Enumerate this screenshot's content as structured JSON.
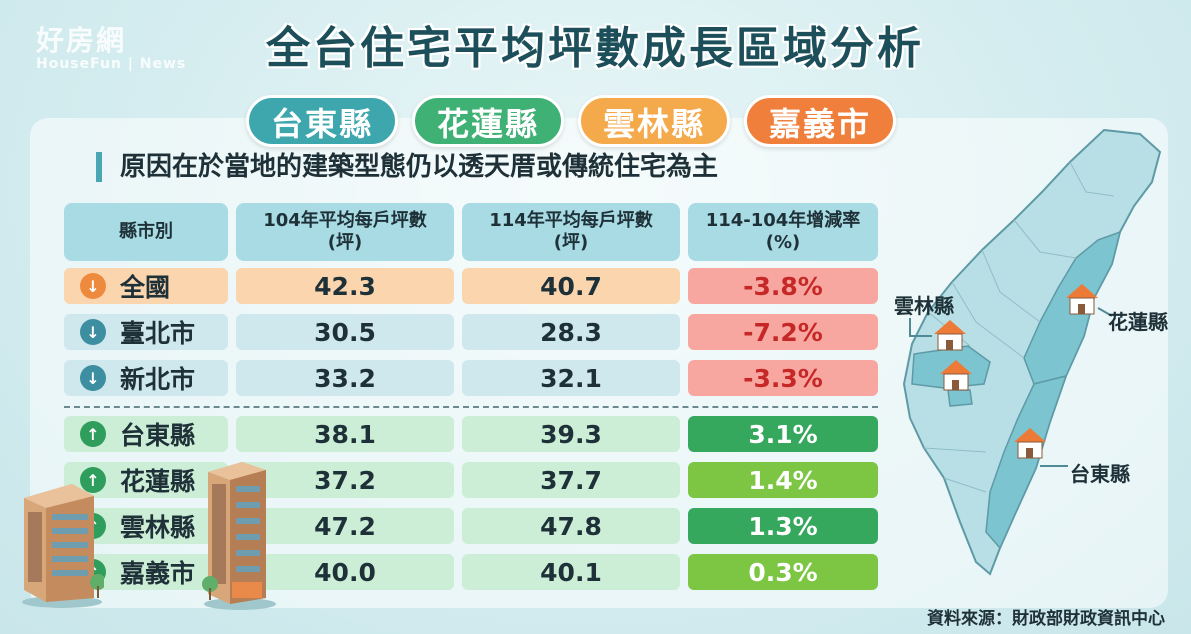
{
  "watermark": {
    "name": "好房網",
    "sub": "HouseFun | News"
  },
  "title": "全台住宅平均坪數成長區域分析",
  "highlights": [
    {
      "label": "台東縣",
      "color": "#3ea7ad"
    },
    {
      "label": "花蓮縣",
      "color": "#3fb174"
    },
    {
      "label": "雲林縣",
      "color": "#f4a94a"
    },
    {
      "label": "嘉義市",
      "color": "#ef7f3b"
    }
  ],
  "reason": "原因在於當地的建築型態仍以透天厝或傳統住宅為主",
  "table": {
    "headers": [
      {
        "line1": "縣市別",
        "line2": ""
      },
      {
        "line1": "104年平均每戶坪數",
        "line2": "(坪)"
      },
      {
        "line1": "114年平均每戶坪數",
        "line2": "(坪)"
      },
      {
        "line1": "114-104年增減率",
        "line2": "(%)"
      }
    ],
    "rows": [
      {
        "name": "全國",
        "y104": "42.3",
        "y114": "40.7",
        "change": "-3.8%",
        "direction": "down",
        "rowColor": "#fbd5ae",
        "arrowColor": "#ee8a3e",
        "changeColor": "#f7a7a0",
        "changeText": "#c62828"
      },
      {
        "name": "臺北市",
        "y104": "30.5",
        "y114": "28.3",
        "change": "-7.2%",
        "direction": "down",
        "rowColor": "#cfe8ee",
        "arrowColor": "#3d8ea0",
        "changeColor": "#f7a7a0",
        "changeText": "#c62828"
      },
      {
        "name": "新北市",
        "y104": "33.2",
        "y114": "32.1",
        "change": "-3.3%",
        "direction": "down",
        "rowColor": "#cfe8ee",
        "arrowColor": "#3d8ea0",
        "changeColor": "#f7a7a0",
        "changeText": "#c62828"
      },
      {
        "name": "台東縣",
        "y104": "38.1",
        "y114": "39.3",
        "change": "3.1%",
        "direction": "up",
        "rowColor": "#cdeed6",
        "arrowColor": "#2f9e5c",
        "changeColor": "#35a85e",
        "changeText": "#ffffff"
      },
      {
        "name": "花蓮縣",
        "y104": "37.2",
        "y114": "37.7",
        "change": "1.4%",
        "direction": "up",
        "rowColor": "#cdeed6",
        "arrowColor": "#2f9e5c",
        "changeColor": "#7cc644",
        "changeText": "#ffffff"
      },
      {
        "name": "雲林縣",
        "y104": "47.2",
        "y114": "47.8",
        "change": "1.3%",
        "direction": "up",
        "rowColor": "#cdeed6",
        "arrowColor": "#2f9e5c",
        "changeColor": "#35a85e",
        "changeText": "#ffffff"
      },
      {
        "name": "嘉義市",
        "y104": "40.0",
        "y114": "40.1",
        "change": "0.3%",
        "direction": "up",
        "rowColor": "#cdeed6",
        "arrowColor": "#2f9e5c",
        "changeColor": "#7cc644",
        "changeText": "#ffffff"
      }
    ]
  },
  "chart_data": {
    "type": "table",
    "title": "全台住宅平均坪數成長區域分析",
    "columns": [
      "縣市別",
      "104年平均每戶坪數(坪)",
      "114年平均每戶坪數(坪)",
      "114-104年增減率(%)"
    ],
    "categories": [
      "全國",
      "臺北市",
      "新北市",
      "台東縣",
      "花蓮縣",
      "雲林縣",
      "嘉義市"
    ],
    "series": [
      {
        "name": "104年平均每戶坪數",
        "values": [
          42.3,
          30.5,
          33.2,
          38.1,
          37.2,
          47.2,
          40.0
        ]
      },
      {
        "name": "114年平均每戶坪數",
        "values": [
          40.7,
          28.3,
          32.1,
          39.3,
          37.7,
          47.8,
          40.1
        ]
      },
      {
        "name": "114-104年增減率",
        "values": [
          -3.8,
          -7.2,
          -3.3,
          3.1,
          1.4,
          1.3,
          0.3
        ]
      }
    ]
  },
  "map": {
    "labels": {
      "yunlin": "雲林縣",
      "hualien": "花蓮縣",
      "taitung": "台東縣"
    },
    "fill": "#b9dfe6",
    "highlight": "#7cc4cf",
    "house_roof": "#ee7a38"
  },
  "icons": {
    "down": "arrow-down-icon",
    "up": "arrow-up-icon",
    "down_glyph": "↓",
    "up_glyph": "↑"
  },
  "source": "資料來源：財政部財政資訊中心"
}
